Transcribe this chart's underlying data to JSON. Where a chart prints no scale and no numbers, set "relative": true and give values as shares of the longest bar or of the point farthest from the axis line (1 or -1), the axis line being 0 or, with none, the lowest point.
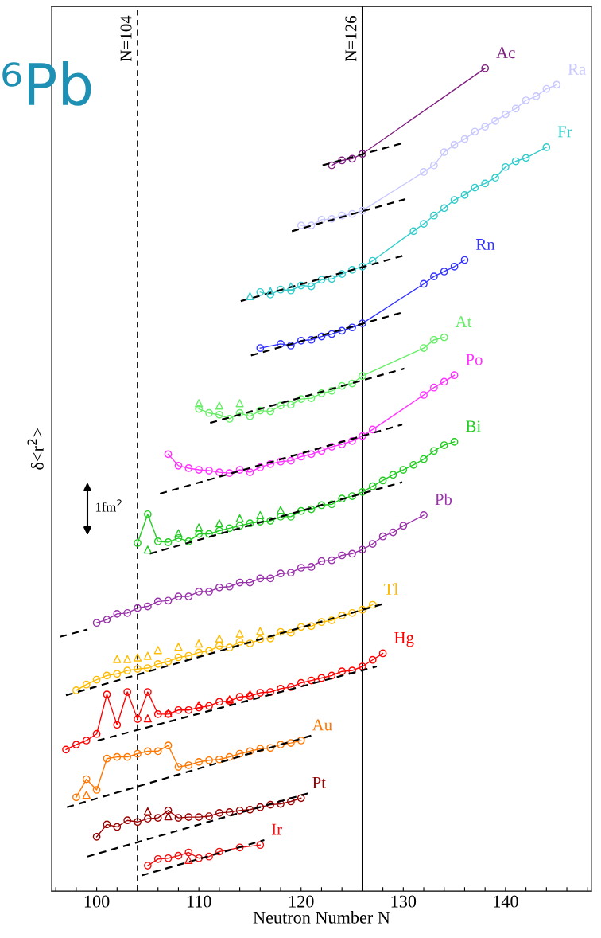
{
  "chart_data": {
    "type": "line",
    "relative": true,
    "xlabel": "Neutron Number N",
    "ylabel": "δ<r$^{2}$>",
    "xlim": [
      95.6,
      148.4
    ],
    "xticks": [
      {
        "value": 96,
        "label": null
      },
      {
        "value": 98,
        "label": null
      },
      100,
      {
        "value": 102,
        "label": null
      },
      {
        "value": 104,
        "label": null
      },
      {
        "value": 106,
        "label": null
      },
      {
        "value": 108,
        "label": null
      },
      110,
      {
        "value": 112,
        "label": null
      },
      {
        "value": 114,
        "label": null
      },
      {
        "value": 116,
        "label": null
      },
      {
        "value": 118,
        "label": null
      },
      120,
      {
        "value": 122,
        "label": null
      },
      {
        "value": 124,
        "label": null
      },
      {
        "value": 126,
        "label": null
      },
      {
        "value": 128,
        "label": null
      },
      130,
      {
        "value": 132,
        "label": null
      },
      {
        "value": 134,
        "label": null
      },
      {
        "value": 136,
        "label": null
      },
      {
        "value": 138,
        "label": null
      },
      140,
      {
        "value": 142,
        "label": null
      },
      {
        "value": 144,
        "label": null
      },
      {
        "value": 146,
        "label": null
      },
      {
        "value": 148,
        "label": null
      }
    ],
    "grid": false,
    "legend": false,
    "marker": "circle",
    "line_style": "solid",
    "ref_lines": [
      {
        "axis": "x",
        "value": 104,
        "label": "N=104",
        "color": "#000000",
        "line_style": "dashed"
      },
      {
        "axis": "x",
        "value": 126,
        "label": "N=126",
        "color": "#000000",
        "line_style": "solid"
      }
    ],
    "annotations": [
      "⁶Pb",
      "1fm$^{2}$"
    ],
    "series": [
      {
        "name": "Ac",
        "color": "#7f1f7f",
        "x": [
          123,
          124,
          125,
          126,
          138
        ],
        "values": [
          0.882,
          0.888,
          0.89,
          0.896,
          1.0
        ]
      },
      {
        "name": "Ra",
        "color": "#c8c8ff",
        "x": [
          120,
          121,
          122,
          123,
          124,
          125,
          126,
          132,
          133,
          134,
          135,
          136,
          137,
          138,
          139,
          140,
          141,
          142,
          143,
          144,
          145
        ],
        "values": [
          0.809,
          0.809,
          0.816,
          0.817,
          0.821,
          0.823,
          0.827,
          0.874,
          0.882,
          0.898,
          0.907,
          0.914,
          0.923,
          0.929,
          0.936,
          0.944,
          0.951,
          0.961,
          0.966,
          0.975,
          0.98
        ]
      },
      {
        "name": "Fr",
        "color": "#33cccc",
        "x": [
          116,
          117,
          118,
          119,
          120,
          121,
          122,
          123,
          124,
          125,
          126,
          127,
          131,
          132,
          133,
          134,
          135,
          136,
          137,
          138,
          139,
          140,
          141,
          142,
          144
        ],
        "values": [
          0.728,
          0.725,
          0.731,
          0.73,
          0.736,
          0.735,
          0.743,
          0.744,
          0.75,
          0.755,
          0.759,
          0.766,
          0.802,
          0.811,
          0.821,
          0.83,
          0.84,
          0.846,
          0.855,
          0.86,
          0.867,
          0.88,
          0.887,
          0.891,
          0.904
        ]
      },
      {
        "name": "Rn",
        "color": "#3333ff",
        "x": [
          116,
          118,
          119,
          120,
          121,
          122,
          123,
          124,
          125,
          126,
          132,
          133,
          134,
          135,
          136
        ],
        "values": [
          0.66,
          0.665,
          0.663,
          0.669,
          0.67,
          0.674,
          0.677,
          0.681,
          0.685,
          0.69,
          0.738,
          0.747,
          0.753,
          0.759,
          0.767
        ]
      },
      {
        "name": "At",
        "color": "#66ee66",
        "x": [
          110,
          111,
          112,
          113,
          114,
          115,
          116,
          117,
          118,
          119,
          120,
          121,
          122,
          123,
          124,
          125,
          126,
          132,
          133,
          134
        ],
        "values": [
          0.586,
          0.581,
          0.579,
          0.574,
          0.581,
          0.577,
          0.584,
          0.583,
          0.59,
          0.591,
          0.598,
          0.599,
          0.605,
          0.608,
          0.614,
          0.617,
          0.626,
          0.66,
          0.67,
          0.673
        ]
      },
      {
        "name": "Po",
        "color": "#ff33ff",
        "x": [
          107,
          108,
          109,
          110,
          111,
          112,
          113,
          114,
          115,
          116,
          117,
          118,
          119,
          120,
          121,
          122,
          123,
          124,
          125,
          126,
          127,
          132,
          133,
          134,
          135
        ],
        "values": [
          0.531,
          0.517,
          0.514,
          0.512,
          0.511,
          0.509,
          0.508,
          0.512,
          0.509,
          0.515,
          0.519,
          0.522,
          0.523,
          0.528,
          0.531,
          0.535,
          0.54,
          0.543,
          0.547,
          0.553,
          0.561,
          0.603,
          0.612,
          0.619,
          0.627
        ]
      },
      {
        "name": "Bi",
        "color": "#22cc22",
        "x": [
          104,
          105,
          106,
          107,
          108,
          109,
          110,
          111,
          112,
          113,
          114,
          115,
          116,
          117,
          118,
          119,
          120,
          121,
          122,
          123,
          124,
          125,
          126,
          127,
          128,
          129,
          130,
          131,
          132,
          133,
          134,
          135
        ],
        "values": [
          0.423,
          0.458,
          0.425,
          0.424,
          0.429,
          0.425,
          0.434,
          0.434,
          0.438,
          0.441,
          0.444,
          0.447,
          0.449,
          0.45,
          0.455,
          0.455,
          0.462,
          0.464,
          0.469,
          0.47,
          0.477,
          0.48,
          0.485,
          0.492,
          0.499,
          0.506,
          0.512,
          0.518,
          0.525,
          0.535,
          0.542,
          0.546
        ]
      },
      {
        "name": "Pb",
        "color": "#9933aa",
        "x": [
          100,
          101,
          102,
          103,
          104,
          105,
          106,
          107,
          108,
          109,
          110,
          111,
          112,
          113,
          114,
          115,
          116,
          117,
          118,
          119,
          120,
          121,
          122,
          123,
          124,
          125,
          126,
          127,
          128,
          129,
          130,
          132
        ],
        "values": [
          0.326,
          0.33,
          0.337,
          0.338,
          0.344,
          0.346,
          0.352,
          0.353,
          0.358,
          0.358,
          0.364,
          0.364,
          0.369,
          0.37,
          0.375,
          0.375,
          0.38,
          0.38,
          0.386,
          0.387,
          0.393,
          0.394,
          0.401,
          0.402,
          0.408,
          0.41,
          0.415,
          0.422,
          0.431,
          0.436,
          0.444,
          0.457
        ]
      },
      {
        "name": "Tl",
        "color": "#ffbb00",
        "x": [
          98,
          99,
          100,
          101,
          102,
          103,
          104,
          105,
          106,
          107,
          108,
          109,
          110,
          111,
          112,
          113,
          114,
          115,
          116,
          117,
          118,
          119,
          120,
          121,
          122,
          123,
          124,
          125,
          126,
          127
        ],
        "values": [
          0.244,
          0.251,
          0.257,
          0.262,
          0.264,
          0.268,
          0.27,
          0.271,
          0.276,
          0.279,
          0.284,
          0.286,
          0.29,
          0.292,
          0.298,
          0.296,
          0.303,
          0.301,
          0.306,
          0.307,
          0.315,
          0.314,
          0.321,
          0.322,
          0.327,
          0.329,
          0.335,
          0.338,
          0.342,
          0.348
        ]
      },
      {
        "name": "Hg",
        "color": "#ff0000",
        "x": [
          97,
          98,
          99,
          100,
          101,
          102,
          103,
          104,
          105,
          106,
          107,
          108,
          109,
          110,
          111,
          112,
          113,
          114,
          115,
          116,
          117,
          118,
          119,
          120,
          121,
          122,
          123,
          124,
          125,
          126,
          127,
          128
        ],
        "values": [
          0.172,
          0.178,
          0.183,
          0.191,
          0.239,
          0.202,
          0.242,
          0.209,
          0.242,
          0.215,
          0.215,
          0.22,
          0.22,
          0.223,
          0.225,
          0.23,
          0.231,
          0.236,
          0.237,
          0.241,
          0.242,
          0.246,
          0.248,
          0.253,
          0.256,
          0.259,
          0.262,
          0.267,
          0.268,
          0.273,
          0.281,
          0.289
        ]
      },
      {
        "name": "Au",
        "color": "#ff7700",
        "x": [
          98,
          99,
          100,
          101,
          102,
          103,
          104,
          105,
          106,
          107,
          108,
          109,
          110,
          111,
          112,
          113,
          114,
          115,
          116,
          117,
          118,
          119,
          120
        ],
        "values": [
          0.114,
          0.136,
          0.123,
          0.161,
          0.163,
          0.163,
          0.167,
          0.17,
          0.17,
          0.177,
          0.151,
          0.153,
          0.157,
          0.159,
          0.16,
          0.163,
          0.167,
          0.17,
          0.173,
          0.174,
          0.178,
          0.18,
          0.183
        ]
      },
      {
        "name": "Pt",
        "color": "#990000",
        "x": [
          100,
          101,
          102,
          103,
          104,
          105,
          106,
          107,
          108,
          109,
          110,
          111,
          112,
          113,
          114,
          115,
          116,
          117,
          118,
          119,
          120
        ],
        "values": [
          0.066,
          0.081,
          0.078,
          0.086,
          0.084,
          0.088,
          0.089,
          0.098,
          0.089,
          0.09,
          0.09,
          0.091,
          0.095,
          0.096,
          0.098,
          0.099,
          0.102,
          0.105,
          0.106,
          0.109,
          0.113
        ]
      },
      {
        "name": "Ir",
        "color": "#ee1111",
        "x": [
          105,
          106,
          107,
          108,
          109,
          110,
          111,
          112,
          114,
          116
        ],
        "values": [
          0.031,
          0.039,
          0.04,
          0.043,
          0.047,
          0.04,
          0.042,
          0.048,
          0.053,
          0.056
        ]
      },
      {
        "type": "scatter",
        "marker": "triangle",
        "color": "#33cccc",
        "x": [
          115,
          117,
          119
        ],
        "values": [
          0.723,
          0.729,
          0.735
        ]
      },
      {
        "type": "scatter",
        "marker": "triangle",
        "color": "#66ee66",
        "x": [
          110,
          112,
          114
        ],
        "values": [
          0.593,
          0.59,
          0.593
        ]
      },
      {
        "type": "scatter",
        "marker": "triangle",
        "color": "#22cc22",
        "x": [
          105,
          108,
          110,
          112,
          114,
          116,
          118
        ],
        "values": [
          0.415,
          0.435,
          0.442,
          0.447,
          0.453,
          0.457,
          0.463
        ]
      },
      {
        "type": "scatter",
        "marker": "triangle",
        "color": "#ffbb00",
        "x": [
          102,
          103,
          104,
          105,
          106,
          108,
          110,
          112,
          114,
          116
        ],
        "values": [
          0.282,
          0.282,
          0.284,
          0.286,
          0.293,
          0.297,
          0.301,
          0.307,
          0.313,
          0.316
        ]
      },
      {
        "type": "scatter",
        "marker": "triangle",
        "color": "#ff0000",
        "x": [
          105,
          107,
          110,
          113,
          115
        ],
        "values": [
          0.21,
          0.216,
          0.226,
          0.233,
          0.239
        ]
      },
      {
        "type": "scatter",
        "marker": "triangle",
        "color": "#ff7700",
        "x": [
          99
        ],
        "values": [
          0.117
        ]
      },
      {
        "type": "scatter",
        "marker": "triangle",
        "color": "#990000",
        "x": [
          105,
          107
        ],
        "values": [
          0.097,
          0.091
        ]
      },
      {
        "type": "scatter",
        "marker": "triangle",
        "color": "#ee1111",
        "x": [
          109
        ],
        "values": [
          0.038
        ]
      },
      {
        "color": "#000000",
        "marker": "none",
        "line_style": "dashed",
        "x": [
          122.1,
          130.2
        ],
        "values": [
          0.882,
          0.91
        ]
      },
      {
        "color": "#000000",
        "marker": "none",
        "line_style": "dashed",
        "x": [
          119.1,
          130.2
        ],
        "values": [
          0.802,
          0.841
        ]
      },
      {
        "color": "#000000",
        "marker": "none",
        "line_style": "dashed",
        "x": [
          114.1,
          130.2
        ],
        "values": [
          0.717,
          0.773
        ]
      },
      {
        "color": "#000000",
        "marker": "none",
        "line_style": "dashed",
        "x": [
          115.1,
          130.1
        ],
        "values": [
          0.651,
          0.704
        ]
      },
      {
        "color": "#000000",
        "marker": "none",
        "line_style": "dashed",
        "x": [
          111.1,
          130.1
        ],
        "values": [
          0.569,
          0.635
        ]
      },
      {
        "color": "#000000",
        "marker": "none",
        "line_style": "dashed",
        "x": [
          106.2,
          129.9
        ],
        "values": [
          0.483,
          0.567
        ]
      },
      {
        "color": "#000000",
        "marker": "none",
        "line_style": "dashed",
        "x": [
          105.2,
          129.9
        ],
        "values": [
          0.41,
          0.497
        ]
      },
      {
        "color": "#000000",
        "marker": "none",
        "line_style": "dashed",
        "x": [
          96.4,
          99.1
        ],
        "values": [
          0.309,
          0.318
        ]
      },
      {
        "color": "#000000",
        "marker": "none",
        "line_style": "dashed",
        "x": [
          97.0,
          128.0
        ],
        "values": [
          0.238,
          0.349
        ]
      },
      {
        "color": "#000000",
        "marker": "none",
        "line_style": "dashed",
        "x": [
          100.1,
          127.4
        ],
        "values": [
          0.183,
          0.273
        ]
      },
      {
        "color": "#000000",
        "marker": "none",
        "line_style": "dashed",
        "x": [
          97.1,
          121.0
        ],
        "values": [
          0.102,
          0.189
        ]
      },
      {
        "color": "#000000",
        "marker": "none",
        "line_style": "dashed",
        "x": [
          99.1,
          121.0
        ],
        "values": [
          0.042,
          0.12
        ]
      },
      {
        "color": "#000000",
        "marker": "none",
        "line_style": "dashed",
        "x": [
          104.4,
          116.4
        ],
        "values": [
          0.019,
          0.062
        ]
      }
    ]
  }
}
